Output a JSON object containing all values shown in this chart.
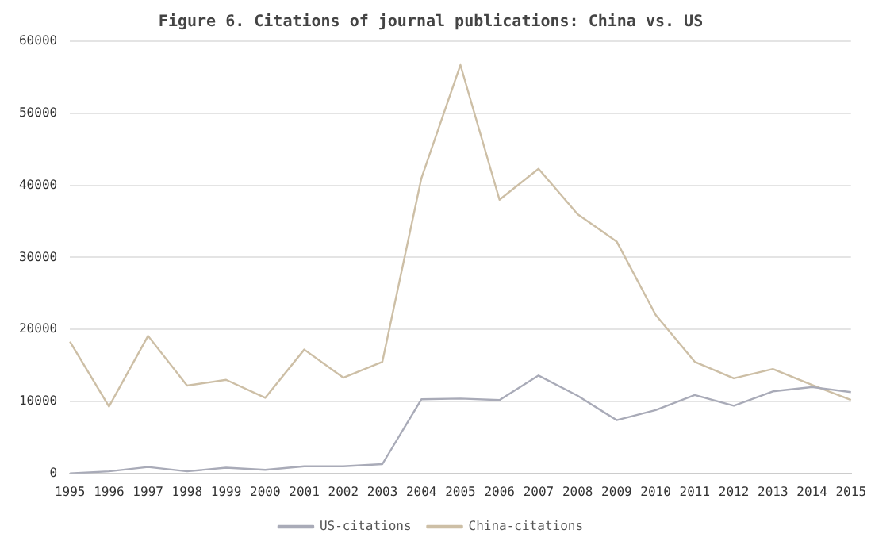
{
  "chart_data": {
    "type": "line",
    "title": "Figure 6. Citations of journal publications: China vs. US",
    "categories": [
      "1995",
      "1996",
      "1997",
      "1998",
      "1999",
      "2000",
      "2001",
      "2002",
      "2003",
      "2004",
      "2005",
      "2006",
      "2007",
      "2008",
      "2009",
      "2010",
      "2011",
      "2012",
      "2013",
      "2014",
      "2015"
    ],
    "series": [
      {
        "name": "US-citations",
        "color": "#a9abb8",
        "values": [
          0,
          300,
          900,
          300,
          800,
          500,
          1000,
          1000,
          1300,
          10300,
          10400,
          10200,
          13600,
          10800,
          7400,
          8800,
          10900,
          9400,
          11400,
          12000,
          11300
        ]
      },
      {
        "name": "China-citations",
        "color": "#cdbfa6",
        "values": [
          18300,
          9300,
          19100,
          12200,
          13000,
          10500,
          17200,
          13300,
          15500,
          41000,
          56700,
          38000,
          42300,
          36000,
          32200,
          22000,
          15500,
          13200,
          14500,
          12300,
          10200
        ]
      }
    ],
    "ylim": [
      0,
      60000
    ],
    "yticks": [
      0,
      10000,
      20000,
      30000,
      40000,
      50000,
      60000
    ],
    "grid": "y",
    "legend": "bottom",
    "marker": "none",
    "line_style": "solid"
  }
}
